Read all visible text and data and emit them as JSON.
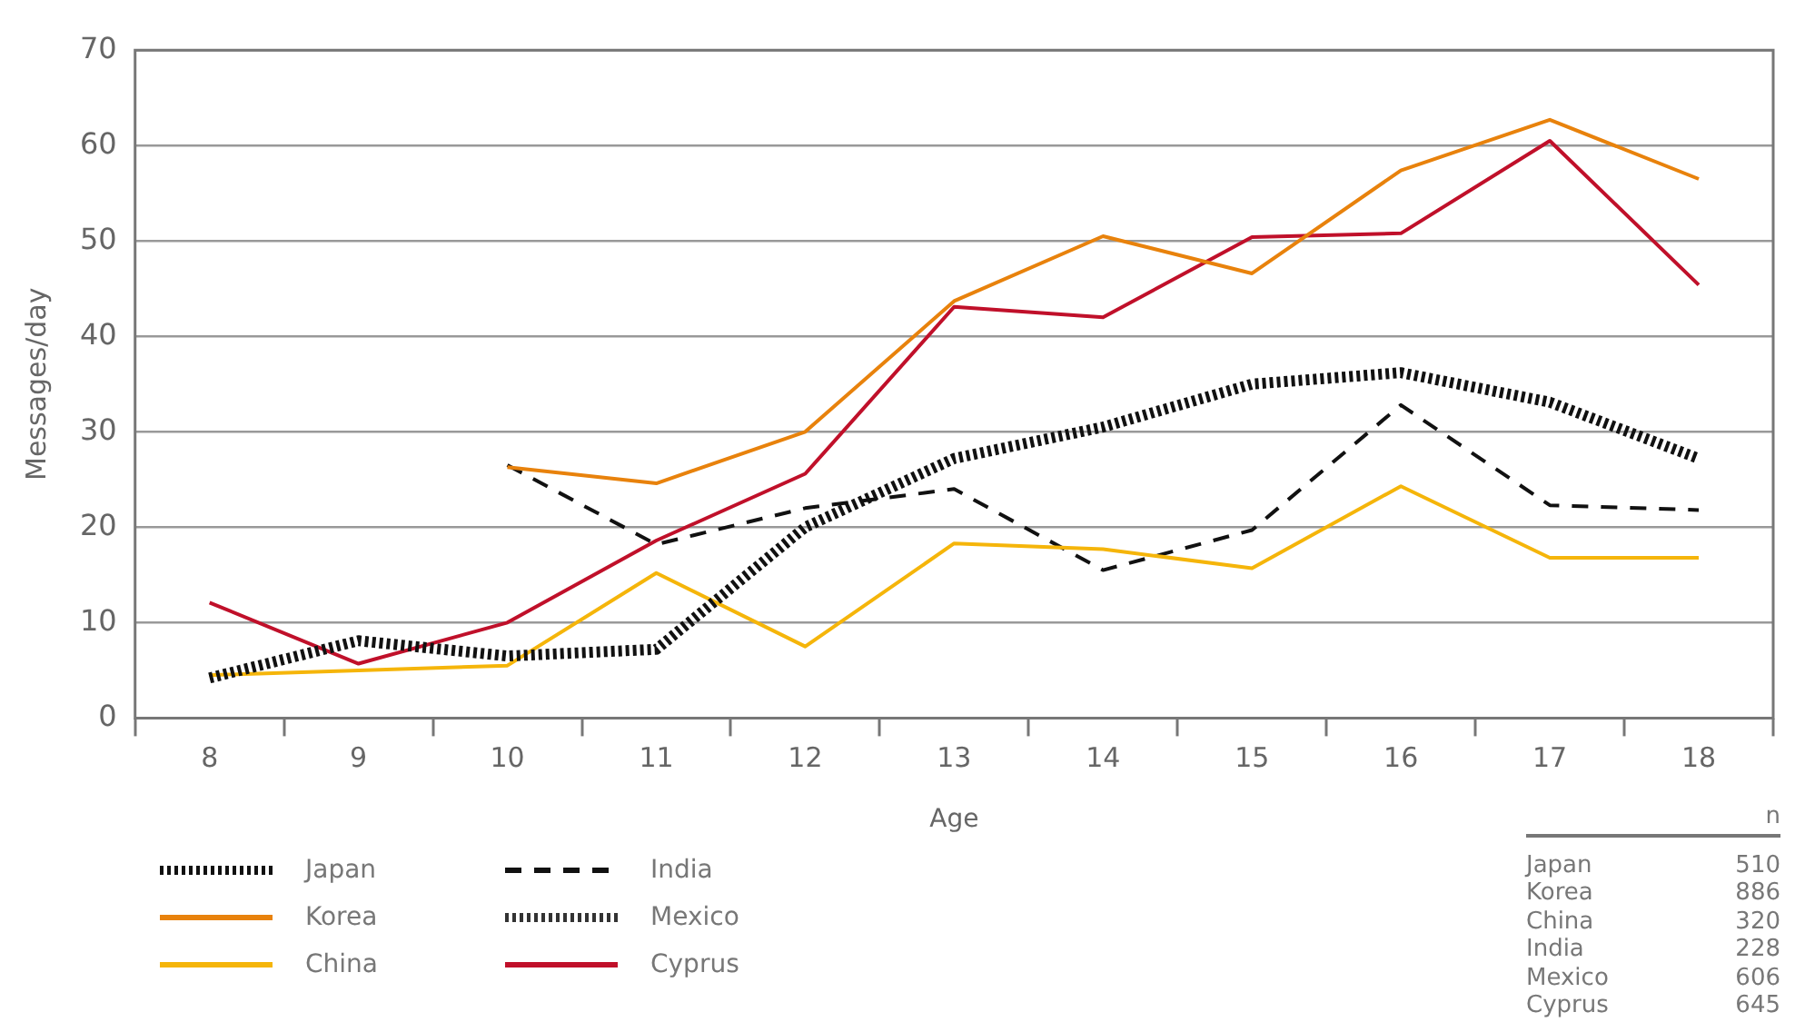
{
  "chart_data": {
    "type": "line",
    "xlabel": "Age",
    "ylabel": "Messages/day",
    "categories": [
      "8",
      "9",
      "10",
      "11",
      "12",
      "13",
      "14",
      "15",
      "16",
      "17",
      "18"
    ],
    "series": [
      {
        "name": "Japan",
        "color": "#111111",
        "line_style": "dotted",
        "values": [
          4.2,
          8.1,
          6.5,
          7.2,
          20,
          27.2,
          30.5,
          35,
          36.2,
          33.1,
          27.2
        ]
      },
      {
        "name": "Korea",
        "color": "#e8820c",
        "line_style": "solid",
        "values": [
          null,
          null,
          26.3,
          24.6,
          30,
          43.7,
          50.5,
          46.6,
          57.4,
          62.7,
          56.5
        ]
      },
      {
        "name": "China",
        "color": "#f5b50a",
        "line_style": "solid",
        "values": [
          4.5,
          5,
          5.5,
          15.2,
          7.5,
          18.3,
          17.7,
          15.7,
          24.3,
          16.8,
          16.8
        ]
      },
      {
        "name": "India",
        "color": "#111111",
        "line_style": "dashed",
        "values": [
          null,
          null,
          26.5,
          18.2,
          22,
          24,
          15.5,
          19.7,
          32.8,
          22.3,
          21.8
        ]
      },
      {
        "name": "Mexico",
        "color": "#333333",
        "line_style": "dotted",
        "values": [
          null,
          null,
          null,
          null,
          null,
          null,
          null,
          null,
          null,
          null,
          null
        ]
      },
      {
        "name": "Cyprus",
        "color": "#c0102a",
        "line_style": "solid",
        "values": [
          12.1,
          5.7,
          10,
          18.6,
          25.6,
          43.1,
          42,
          50.4,
          50.8,
          60.5,
          45.4
        ]
      }
    ],
    "ylim": [
      0,
      70
    ],
    "yticks": [
      0,
      10,
      20,
      30,
      40,
      50,
      60,
      70
    ],
    "grid": "y",
    "legend": "bottom left",
    "marker": "none",
    "annotations": [
      "n",
      "Japan 510",
      "Korea 886",
      "China 320",
      "India 228",
      "Mexico 606",
      "Cyprus 645"
    ]
  }
}
